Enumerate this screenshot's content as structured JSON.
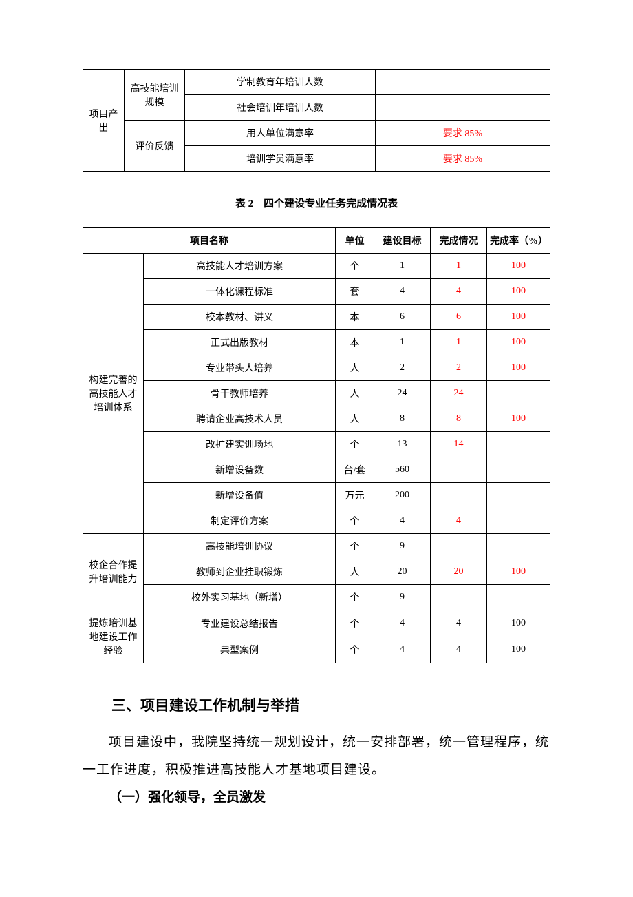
{
  "colors": {
    "text": "#000000",
    "highlight": "#ff0000",
    "border": "#000000",
    "background": "#ffffff"
  },
  "table1": {
    "category": "项目产出",
    "groups": [
      {
        "name": "高技能培训规模",
        "rows": [
          {
            "label": "学制教育年培训人数",
            "value": "",
            "red": false
          },
          {
            "label": "社会培训年培训人数",
            "value": "",
            "red": false
          }
        ]
      },
      {
        "name": "评价反馈",
        "rows": [
          {
            "label": "用人单位满意率",
            "value": "要求 85%",
            "red": true
          },
          {
            "label": "培训学员满意率",
            "value": "要求 85%",
            "red": true
          }
        ]
      }
    ]
  },
  "table2": {
    "caption": "表 2　四个建设专业任务完成情况表",
    "headers": {
      "name": "项目名称",
      "unit": "单位",
      "target": "建设目标",
      "completion": "完成情况",
      "rate": "完成率（%）"
    },
    "groups": [
      {
        "title": "构建完善的高技能人才培训体系",
        "rows": [
          {
            "name": "高技能人才培训方案",
            "unit": "个",
            "target": "1",
            "completion": "1",
            "rate": "100",
            "red_completion": true,
            "red_rate": true
          },
          {
            "name": "一体化课程标准",
            "unit": "套",
            "target": "4",
            "completion": "4",
            "rate": "100",
            "red_completion": true,
            "red_rate": true
          },
          {
            "name": "校本教材、讲义",
            "unit": "本",
            "target": "6",
            "completion": "6",
            "rate": "100",
            "red_completion": true,
            "red_rate": true
          },
          {
            "name": "正式出版教材",
            "unit": "本",
            "target": "1",
            "completion": "1",
            "rate": "100",
            "red_completion": true,
            "red_rate": true
          },
          {
            "name": "专业带头人培养",
            "unit": "人",
            "target": "2",
            "completion": "2",
            "rate": "100",
            "red_completion": true,
            "red_rate": true
          },
          {
            "name": "骨干教师培养",
            "unit": "人",
            "target": "24",
            "completion": "24",
            "rate": "",
            "red_completion": true,
            "red_rate": false
          },
          {
            "name": "聘请企业高技术人员",
            "unit": "人",
            "target": "8",
            "completion": "8",
            "rate": "100",
            "red_completion": true,
            "red_rate": true
          },
          {
            "name": "改扩建实训场地",
            "unit": "个",
            "target": "13",
            "completion": "14",
            "rate": "",
            "red_completion": true,
            "red_rate": false
          },
          {
            "name": "新增设备数",
            "unit": "台/套",
            "target": "560",
            "completion": "",
            "rate": "",
            "red_completion": false,
            "red_rate": false
          },
          {
            "name": "新增设备值",
            "unit": "万元",
            "target": "200",
            "completion": "",
            "rate": "",
            "red_completion": false,
            "red_rate": false
          },
          {
            "name": "制定评价方案",
            "unit": "个",
            "target": "4",
            "completion": "4",
            "rate": "",
            "red_completion": true,
            "red_rate": false
          }
        ]
      },
      {
        "title": "校企合作提升培训能力",
        "rows": [
          {
            "name": "高技能培训协议",
            "unit": "个",
            "target": "9",
            "completion": "",
            "rate": "",
            "red_completion": false,
            "red_rate": false
          },
          {
            "name": "教师到企业挂职锻炼",
            "unit": "人",
            "target": "20",
            "completion": "20",
            "rate": "100",
            "red_completion": true,
            "red_rate": true
          },
          {
            "name": "校外实习基地（新增）",
            "unit": "个",
            "target": "9",
            "completion": "",
            "rate": "",
            "red_completion": false,
            "red_rate": false
          }
        ]
      },
      {
        "title": "提炼培训基地建设工作经验",
        "rows": [
          {
            "name": "专业建设总结报告",
            "unit": "个",
            "target": "4",
            "completion": "4",
            "rate": "100",
            "red_completion": false,
            "red_rate": false
          },
          {
            "name": "典型案例",
            "unit": "个",
            "target": "4",
            "completion": "4",
            "rate": "100",
            "red_completion": false,
            "red_rate": false
          }
        ]
      }
    ]
  },
  "section": {
    "heading": "三、项目建设工作机制与举措",
    "paragraph": "项目建设中，我院坚持统一规划设计，统一安排部署，统一管理程序，统一工作进度，积极推进高技能人才基地项目建设。",
    "subheading": "（一）强化领导，全员激发"
  }
}
